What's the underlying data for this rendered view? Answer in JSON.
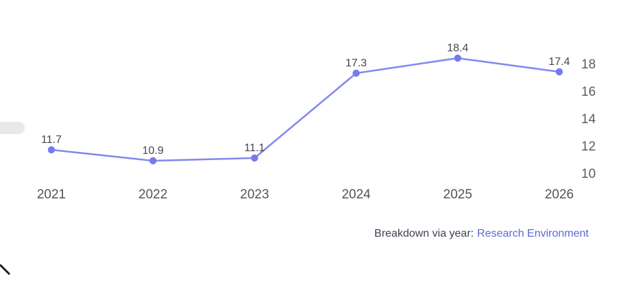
{
  "chart_data": {
    "type": "line",
    "categories": [
      "2021",
      "2022",
      "2023",
      "2024",
      "2025",
      "2026"
    ],
    "series": [
      {
        "name": "Breakdown via year",
        "values": [
          11.7,
          10.9,
          11.1,
          17.3,
          18.4,
          17.4
        ]
      }
    ],
    "point_labels": [
      "11.7",
      "10.9",
      "11.1",
      "17.3",
      "18.4",
      "17.4"
    ],
    "y_ticks": [
      10,
      12,
      14,
      16,
      18
    ],
    "ylim": [
      9.4,
      19.6
    ],
    "y_axis_side": "right",
    "grid": false,
    "legend": "none",
    "title": "",
    "xlabel": "",
    "ylabel": "",
    "line_color": "#8289ee",
    "marker_color": "#747bec",
    "point_label_color": "#45474e",
    "axis_label_color": "#55575e"
  },
  "caption": {
    "prefix": "Breakdown via year:",
    "link_label": "Research Environment",
    "link_color": "#5a69d2"
  }
}
